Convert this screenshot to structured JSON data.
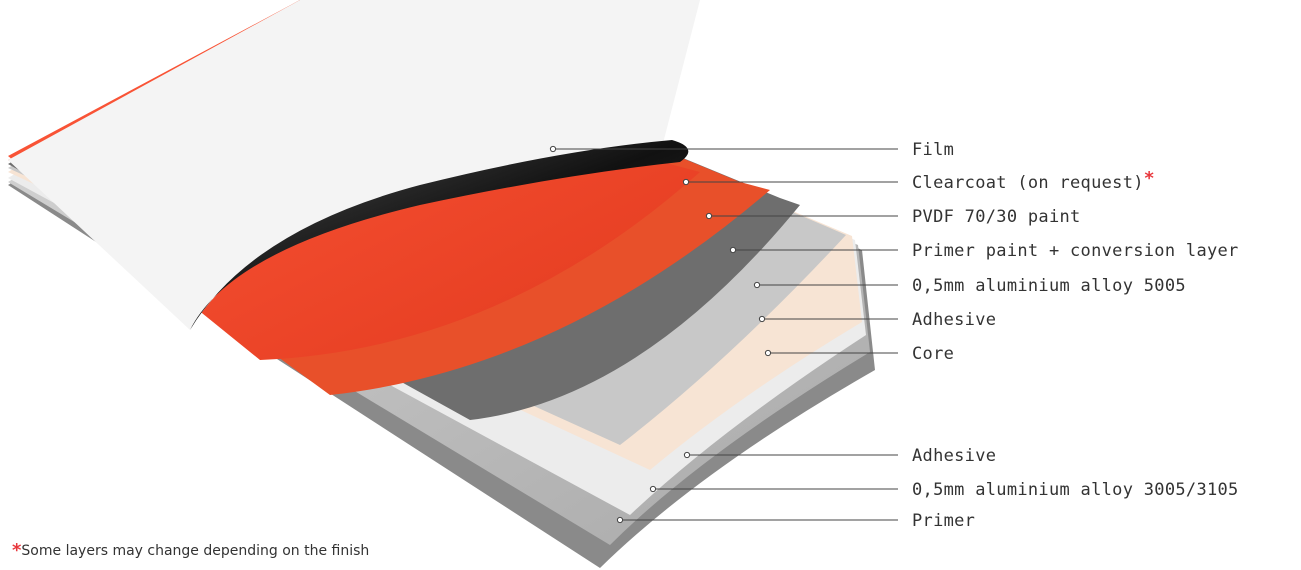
{
  "layers": [
    {
      "label": "Film"
    },
    {
      "label": "Clearcoat (on request)",
      "marker": "*"
    },
    {
      "label": "PVDF 70/30 paint"
    },
    {
      "label": "Primer paint + conversion layer"
    },
    {
      "label": "0,5mm aluminium alloy 5005"
    },
    {
      "label": "Adhesive"
    },
    {
      "label": "Core"
    },
    {
      "label": "Adhesive"
    },
    {
      "label": "0,5mm aluminium alloy 3005/3105"
    },
    {
      "label": "Primer"
    }
  ],
  "footnote": {
    "marker": "*",
    "text": "Some layers may change depending on the finish"
  }
}
